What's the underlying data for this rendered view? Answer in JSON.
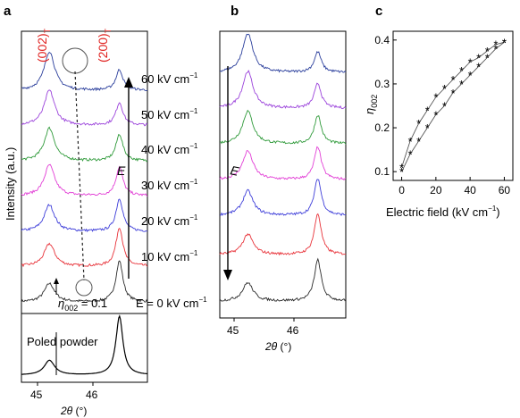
{
  "panel_letters": {
    "a": "a",
    "b": "b",
    "c": "c"
  },
  "colors": {
    "black": "#2b2b2b",
    "red": "#e8333a",
    "blue": "#3d3dd9",
    "magenta": "#e23fd6",
    "green": "#2f9a3a",
    "purple": "#9b43db",
    "navy": "#2b3f9c",
    "gray": "#888888",
    "annotation_red": "#e0201e"
  },
  "panel_a": {
    "peak_labels": {
      "p002_main": "(002)",
      "p002_sub": "T",
      "p200_main": "(200)",
      "p200_sub": "T"
    },
    "field_labels": {
      "f60": "60 kV cm",
      "f50": "50 kV cm",
      "f40": "40 kV cm",
      "f30": "30 kV cm",
      "f20": "20 kV cm",
      "f10": "10 kV cm",
      "f0": "E = 0 kV cm",
      "exp": "−1"
    },
    "y_axis_label": "Intensity (a.u.)",
    "arrow_label": "E",
    "eta_label": {
      "eta": "η",
      "sub": "002",
      "rest": " = 0.1"
    },
    "lower_label": "Poled powder",
    "x_ticks": [
      "45",
      "46"
    ],
    "x_label": {
      "theta": "2θ",
      "unit": " (°)"
    }
  },
  "panel_b": {
    "arrow_label": "E",
    "x_ticks": [
      "45",
      "46"
    ],
    "x_label": {
      "theta": "2θ",
      "unit": " (°)"
    }
  },
  "panel_c": {
    "y_label": {
      "eta": "η",
      "sub": "002"
    },
    "x_label": "Electric field (kV cm",
    "x_label_exp": "−1",
    "x_label_close": ")"
  },
  "chart_data": [
    {
      "type": "line",
      "panel": "a",
      "xlabel": "2θ (°)",
      "ylabel": "Intensity (a.u.)",
      "x_ticks": [
        45,
        46
      ],
      "xlim": [
        44.8,
        46.6
      ],
      "peaks_2theta": {
        "(002)T": 45.2,
        "(200)T": 46.2
      },
      "series": [
        {
          "name": "E = 0 kV cm−1",
          "color": "#2b2b2b",
          "peak_002": 0.45,
          "peak_200": 1.0
        },
        {
          "name": "10 kV cm−1",
          "color": "#e8333a",
          "peak_002": 0.55,
          "peak_200": 0.95
        },
        {
          "name": "20 kV cm−1",
          "color": "#3d3dd9",
          "peak_002": 0.65,
          "peak_200": 0.8
        },
        {
          "name": "30 kV cm−1",
          "color": "#e23fd6",
          "peak_002": 0.75,
          "peak_200": 0.7
        },
        {
          "name": "40 kV cm−1",
          "color": "#2f9a3a",
          "peak_002": 0.8,
          "peak_200": 0.65
        },
        {
          "name": "50 kV cm−1",
          "color": "#9b43db",
          "peak_002": 0.85,
          "peak_200": 0.55
        },
        {
          "name": "60 kV cm−1",
          "color": "#2b3f9c",
          "peak_002": 0.95,
          "peak_200": 0.5
        },
        {
          "name": "Poled powder",
          "color": "#000000",
          "peak_002": 0.25,
          "peak_200": 1.0
        }
      ]
    },
    {
      "type": "line",
      "panel": "b",
      "xlabel": "2θ (°)",
      "x_ticks": [
        45,
        46
      ],
      "xlim": [
        44.8,
        46.6
      ],
      "series": [
        {
          "name": "60 kV cm−1",
          "color": "#2b3f9c",
          "peak_002": 0.95,
          "peak_200": 0.5
        },
        {
          "name": "50 kV cm−1",
          "color": "#9b43db",
          "peak_002": 0.9,
          "peak_200": 0.6
        },
        {
          "name": "40 kV cm−1",
          "color": "#2f9a3a",
          "peak_002": 0.8,
          "peak_200": 0.7
        },
        {
          "name": "30 kV cm−1",
          "color": "#e23fd6",
          "peak_002": 0.7,
          "peak_200": 0.8
        },
        {
          "name": "20 kV cm−1",
          "color": "#3d3dd9",
          "peak_002": 0.6,
          "peak_200": 0.9
        },
        {
          "name": "10 kV cm−1",
          "color": "#e8333a",
          "peak_002": 0.5,
          "peak_200": 1.0
        },
        {
          "name": "0 kV cm−1",
          "color": "#2b2b2b",
          "peak_002": 0.45,
          "peak_200": 1.0
        }
      ]
    },
    {
      "type": "scatter",
      "panel": "c",
      "xlabel": "Electric field (kV cm−1)",
      "ylabel": "η002",
      "xlim": [
        -5,
        65
      ],
      "ylim": [
        0.08,
        0.42
      ],
      "x_ticks": [
        0,
        20,
        40,
        60
      ],
      "y_ticks": [
        0.1,
        0.2,
        0.3,
        0.4
      ],
      "series": [
        {
          "x": [
            0,
            5,
            10,
            15,
            20,
            25,
            30,
            35,
            40,
            45,
            50,
            55,
            60
          ],
          "y": [
            0.1,
            0.14,
            0.17,
            0.2,
            0.23,
            0.25,
            0.28,
            0.3,
            0.32,
            0.34,
            0.36,
            0.38,
            0.395
          ]
        },
        {
          "x": [
            60,
            55,
            50,
            45,
            40,
            35,
            30,
            25,
            20,
            15,
            10,
            5,
            0
          ],
          "y": [
            0.395,
            0.39,
            0.375,
            0.36,
            0.35,
            0.33,
            0.31,
            0.29,
            0.27,
            0.24,
            0.21,
            0.17,
            0.11
          ]
        }
      ]
    }
  ]
}
